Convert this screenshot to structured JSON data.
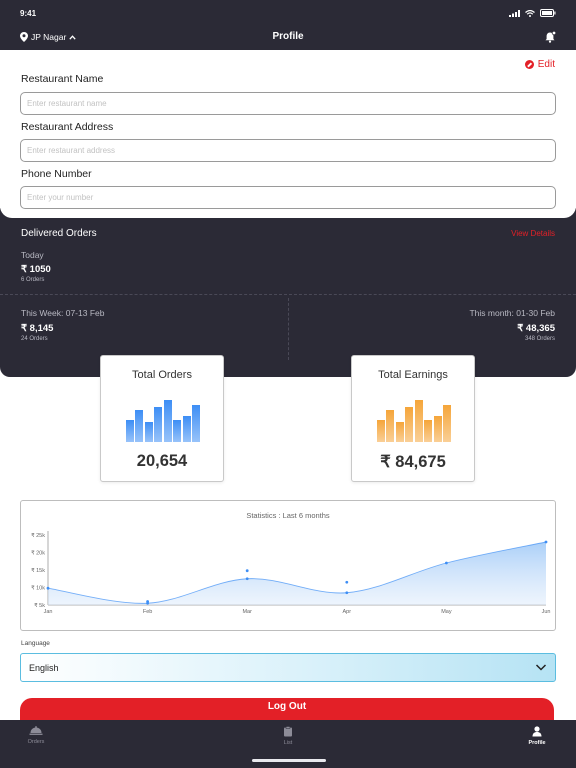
{
  "status_bar": {
    "time": "9:41"
  },
  "header": {
    "location": "JP Nagar",
    "title": "Profile"
  },
  "form": {
    "edit_label": "Edit",
    "restaurant_name": {
      "label": "Restaurant Name",
      "placeholder": "Enter restaurant name",
      "value": ""
    },
    "restaurant_address": {
      "label": "Restaurant Address",
      "placeholder": "Enter restaurant address",
      "value": ""
    },
    "phone_number": {
      "label": "Phone Number",
      "placeholder": "Enter your number",
      "value": ""
    }
  },
  "delivered_orders": {
    "title": "Delivered Orders",
    "view_details": "View Details",
    "today": {
      "label": "Today",
      "amount": "₹ 1050",
      "orders": "6 Orders"
    },
    "week": {
      "label": "This Week: 07-13 Feb",
      "amount": "₹ 8,145",
      "orders": "24 Orders"
    },
    "month": {
      "label": "This month: 01-30 Feb",
      "amount": "₹ 48,365",
      "orders": "348 Orders"
    }
  },
  "total_orders": {
    "title": "Total Orders",
    "value": "20,654",
    "color": "#3d8ef5",
    "bar_levels": [
      0.5,
      0.72,
      0.45,
      0.8,
      0.95,
      0.5,
      0.6,
      0.83
    ]
  },
  "total_earnings": {
    "title": "Total Earnings",
    "value": "₹ 84,675",
    "color": "#f5a53a",
    "bar_levels": [
      0.5,
      0.72,
      0.45,
      0.8,
      0.95,
      0.5,
      0.6,
      0.83
    ]
  },
  "chart_data": {
    "type": "area",
    "title": "Statistics : Last 6 months",
    "categories": [
      "Jan",
      "Feb",
      "Mar",
      "Apr",
      "May",
      "Jun"
    ],
    "y_ticks": [
      "₹ 5k",
      "₹ 10k",
      "₹ 15k",
      "₹ 20k",
      "₹ 25k"
    ],
    "ylim": [
      5000,
      25000
    ],
    "values": [
      9800,
      5500,
      12500,
      8500,
      17000,
      23000
    ],
    "extra_points": [
      {
        "x": "Feb",
        "y": 6000
      },
      {
        "x": "Mar",
        "y": 14800
      },
      {
        "x": "Apr",
        "y": 11500
      }
    ],
    "color": "#3d8ef5"
  },
  "language": {
    "label": "Language",
    "selected": "English"
  },
  "logout_label": "Log Out",
  "tabs": [
    {
      "label": "Orders",
      "icon": "cloche-icon",
      "active": false
    },
    {
      "label": "List",
      "icon": "clipboard-icon",
      "active": false
    },
    {
      "label": "Profile",
      "icon": "person-icon",
      "active": true
    }
  ]
}
